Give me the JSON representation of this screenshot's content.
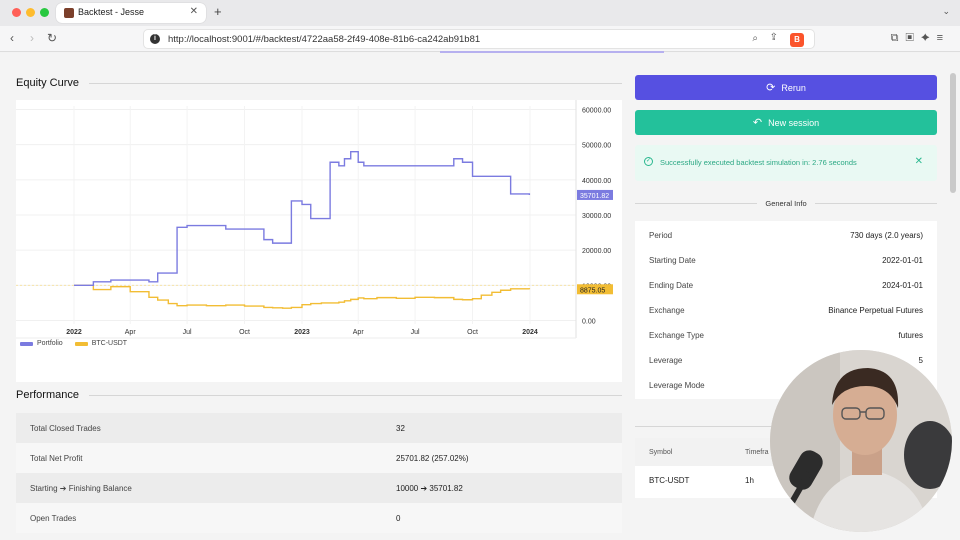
{
  "browser": {
    "tab_title": "Backtest - Jesse",
    "url": "http://localhost:9001/#/backtest/4722aa58-2f49-408e-81b6-ca242ab91b81",
    "new_tab": "+",
    "tab_close": "✕"
  },
  "equity": {
    "section_title": "Equity Curve",
    "chart_data": {
      "type": "line",
      "x": [
        "2022-01-01",
        "2022-02-01",
        "2022-03-01",
        "2022-04-01",
        "2022-05-01",
        "2022-05-15",
        "2022-06-01",
        "2022-06-15",
        "2022-07-01",
        "2022-08-01",
        "2022-09-01",
        "2022-10-01",
        "2022-11-01",
        "2022-11-15",
        "2022-12-01",
        "2022-12-15",
        "2023-01-01",
        "2023-01-15",
        "2023-02-01",
        "2023-02-15",
        "2023-03-01",
        "2023-03-10",
        "2023-03-20",
        "2023-04-01",
        "2023-04-10",
        "2023-05-01",
        "2023-06-01",
        "2023-07-01",
        "2023-08-01",
        "2023-09-01",
        "2023-09-15",
        "2023-10-01",
        "2023-10-15",
        "2023-11-01",
        "2023-11-15",
        "2023-12-01",
        "2023-12-31"
      ],
      "x_tick_labels": [
        "2022",
        "Apr",
        "Jul",
        "Oct",
        "2023",
        "Apr",
        "Jul",
        "Oct",
        "2024"
      ],
      "y_tick_labels": [
        "60000.00",
        "50000.00",
        "40000.00",
        "30000.00",
        "20000.00",
        "10000.00",
        "0.00"
      ],
      "ylim": [
        -1000,
        61000
      ],
      "series": [
        {
          "name": "Portfolio",
          "color": "#7b7be0",
          "last_value": "35701.82",
          "values": [
            10000,
            11000,
            11500,
            11500,
            11000,
            13500,
            13500,
            26500,
            27000,
            27000,
            26000,
            26000,
            23000,
            22000,
            22000,
            34000,
            33000,
            29000,
            29000,
            45000,
            44000,
            46000,
            48000,
            45000,
            44000,
            44000,
            44000,
            44000,
            44000,
            46000,
            45000,
            41000,
            41000,
            41000,
            41000,
            36000,
            35701.82
          ]
        },
        {
          "name": "BTC-USDT",
          "color": "#f2bd34",
          "last_value": "8875.05",
          "values": [
            10000,
            8800,
            9600,
            8200,
            6600,
            5800,
            4800,
            4200,
            4400,
            4200,
            4400,
            4100,
            3700,
            3600,
            3500,
            3700,
            4500,
            4800,
            5000,
            5000,
            5200,
            5600,
            6000,
            6400,
            6200,
            6500,
            6300,
            6600,
            6500,
            6000,
            5900,
            6200,
            7200,
            8000,
            8600,
            9000,
            8875.05
          ]
        }
      ]
    }
  },
  "performance": {
    "section_title": "Performance",
    "rows": [
      {
        "label": "Total Closed Trades",
        "value": "32"
      },
      {
        "label": "Total Net Profit",
        "value": "25701.82 (257.02%)"
      },
      {
        "label": "Starting ➔ Finishing Balance",
        "value": "10000 ➔ 35701.82"
      },
      {
        "label": "Open Trades",
        "value": "0"
      }
    ]
  },
  "actions": {
    "rerun": "Rerun",
    "new_session": "New session"
  },
  "alert": {
    "text": "Successfully executed backtest simulation in: 2.76 seconds",
    "close": "✕"
  },
  "general_info": {
    "title": "General Info",
    "rows": [
      {
        "label": "Period",
        "value": "730 days (2.0 years)"
      },
      {
        "label": "Starting Date",
        "value": "2022-01-01"
      },
      {
        "label": "Ending Date",
        "value": "2024-01-01"
      },
      {
        "label": "Exchange",
        "value": "Binance Perpetual Futures"
      },
      {
        "label": "Exchange Type",
        "value": "futures"
      },
      {
        "label": "Leverage",
        "value": "5"
      },
      {
        "label": "Leverage Mode",
        "value": ""
      }
    ]
  },
  "routes": {
    "headers": {
      "symbol": "Symbol",
      "timeframe": "Timefra"
    },
    "rows": [
      {
        "symbol": "BTC-USDT",
        "timeframe": "1h"
      }
    ]
  },
  "colors": {
    "accent": "#5650e1",
    "success": "#23c19b"
  }
}
